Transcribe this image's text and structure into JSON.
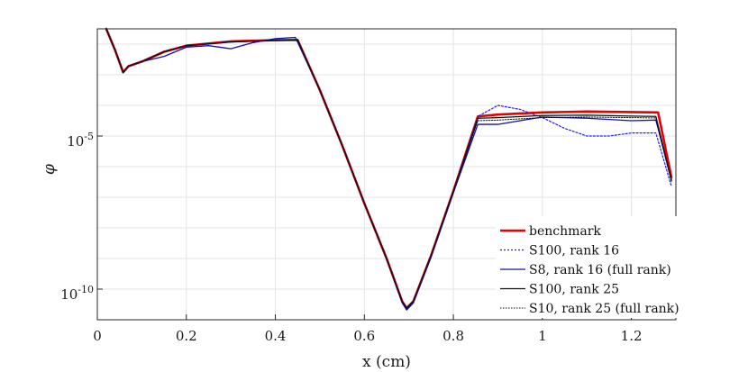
{
  "chart_data": {
    "type": "line",
    "title": "",
    "xlabel": "x (cm)",
    "ylabel": "φ",
    "xlim": [
      0,
      1.3
    ],
    "y_scale": "log",
    "ylim_log10": [
      -11,
      -1.5
    ],
    "grid": true,
    "legend_position": "bottom-right",
    "x_ticks": [
      0,
      0.2,
      0.4,
      0.6,
      0.8,
      1,
      1.2
    ],
    "x_tick_labels": [
      "0",
      "0.2",
      "0.4",
      "0.6",
      "0.8",
      "1",
      "1.2"
    ],
    "y_ticks_log10": [
      -5,
      -10
    ],
    "y_tick_labels": [
      {
        "base": "10",
        "exp": "-5"
      },
      {
        "base": "10",
        "exp": "-10"
      }
    ],
    "series": [
      {
        "name": "benchmark",
        "color": "#e60000",
        "width": 2.6,
        "dash": "",
        "points": [
          [
            0.02,
            -1.5
          ],
          [
            0.04,
            -2.2
          ],
          [
            0.058,
            -2.92
          ],
          [
            0.07,
            -2.72
          ],
          [
            0.1,
            -2.57
          ],
          [
            0.15,
            -2.25
          ],
          [
            0.2,
            -2.05
          ],
          [
            0.3,
            -1.91
          ],
          [
            0.4,
            -1.87
          ],
          [
            0.45,
            -1.86
          ],
          [
            0.5,
            -3.5
          ],
          [
            0.55,
            -5.3
          ],
          [
            0.6,
            -7.2
          ],
          [
            0.65,
            -9.0
          ],
          [
            0.685,
            -10.4
          ],
          [
            0.695,
            -10.62
          ],
          [
            0.71,
            -10.4
          ],
          [
            0.75,
            -8.9
          ],
          [
            0.8,
            -6.8
          ],
          [
            0.855,
            -4.36
          ],
          [
            0.9,
            -4.3
          ],
          [
            1.0,
            -4.23
          ],
          [
            1.1,
            -4.2
          ],
          [
            1.2,
            -4.22
          ],
          [
            1.26,
            -4.23
          ],
          [
            1.29,
            -6.35
          ]
        ]
      },
      {
        "name": "S100, rank 16",
        "color": "#2020ee",
        "width": 1.2,
        "dash": "2,2",
        "points": [
          [
            0.02,
            -1.5
          ],
          [
            0.04,
            -2.2
          ],
          [
            0.058,
            -2.92
          ],
          [
            0.07,
            -2.72
          ],
          [
            0.1,
            -2.57
          ],
          [
            0.15,
            -2.25
          ],
          [
            0.2,
            -2.05
          ],
          [
            0.3,
            -1.91
          ],
          [
            0.4,
            -1.87
          ],
          [
            0.45,
            -1.86
          ],
          [
            0.5,
            -3.5
          ],
          [
            0.55,
            -5.3
          ],
          [
            0.6,
            -7.2
          ],
          [
            0.65,
            -9.0
          ],
          [
            0.685,
            -10.4
          ],
          [
            0.695,
            -10.62
          ],
          [
            0.71,
            -10.4
          ],
          [
            0.75,
            -8.9
          ],
          [
            0.8,
            -6.8
          ],
          [
            0.855,
            -4.36
          ],
          [
            0.9,
            -4.0
          ],
          [
            0.95,
            -4.13
          ],
          [
            1.0,
            -4.4
          ],
          [
            1.05,
            -4.75
          ],
          [
            1.1,
            -5.0
          ],
          [
            1.15,
            -5.0
          ],
          [
            1.2,
            -4.9
          ],
          [
            1.255,
            -4.9
          ],
          [
            1.29,
            -6.65
          ]
        ]
      },
      {
        "name": "S8, rank 16 (full rank)",
        "color": "#1010aa",
        "width": 1.3,
        "dash": "",
        "points": [
          [
            0.02,
            -1.5
          ],
          [
            0.04,
            -2.2
          ],
          [
            0.058,
            -2.92
          ],
          [
            0.07,
            -2.72
          ],
          [
            0.1,
            -2.57
          ],
          [
            0.15,
            -2.4
          ],
          [
            0.2,
            -2.1
          ],
          [
            0.25,
            -2.05
          ],
          [
            0.3,
            -2.15
          ],
          [
            0.35,
            -1.95
          ],
          [
            0.4,
            -1.82
          ],
          [
            0.445,
            -1.78
          ],
          [
            0.5,
            -3.5
          ],
          [
            0.55,
            -5.3
          ],
          [
            0.6,
            -7.2
          ],
          [
            0.65,
            -9.0
          ],
          [
            0.685,
            -10.45
          ],
          [
            0.695,
            -10.68
          ],
          [
            0.71,
            -10.45
          ],
          [
            0.75,
            -8.95
          ],
          [
            0.8,
            -6.85
          ],
          [
            0.855,
            -4.62
          ],
          [
            0.9,
            -4.62
          ],
          [
            1.0,
            -4.38
          ],
          [
            1.1,
            -4.42
          ],
          [
            1.2,
            -4.5
          ],
          [
            1.255,
            -4.48
          ],
          [
            1.29,
            -6.45
          ]
        ]
      },
      {
        "name": "S100, rank 25",
        "color": "#111111",
        "width": 1.3,
        "dash": "",
        "points": [
          [
            0.02,
            -1.5
          ],
          [
            0.04,
            -2.2
          ],
          [
            0.058,
            -2.92
          ],
          [
            0.07,
            -2.72
          ],
          [
            0.1,
            -2.57
          ],
          [
            0.15,
            -2.25
          ],
          [
            0.2,
            -2.05
          ],
          [
            0.3,
            -1.93
          ],
          [
            0.4,
            -1.88
          ],
          [
            0.45,
            -1.87
          ],
          [
            0.5,
            -3.5
          ],
          [
            0.55,
            -5.3
          ],
          [
            0.6,
            -7.2
          ],
          [
            0.65,
            -9.0
          ],
          [
            0.685,
            -10.4
          ],
          [
            0.695,
            -10.62
          ],
          [
            0.71,
            -10.4
          ],
          [
            0.75,
            -8.9
          ],
          [
            0.8,
            -6.8
          ],
          [
            0.855,
            -4.42
          ],
          [
            0.9,
            -4.4
          ],
          [
            1.0,
            -4.33
          ],
          [
            1.1,
            -4.32
          ],
          [
            1.2,
            -4.35
          ],
          [
            1.255,
            -4.36
          ],
          [
            1.29,
            -6.45
          ]
        ]
      },
      {
        "name": "S10, rank 25 (full rank)",
        "color": "#111111",
        "width": 1.0,
        "dash": "1.5,1.5",
        "points": [
          [
            0.02,
            -1.5
          ],
          [
            0.04,
            -2.2
          ],
          [
            0.058,
            -2.92
          ],
          [
            0.07,
            -2.72
          ],
          [
            0.1,
            -2.57
          ],
          [
            0.15,
            -2.25
          ],
          [
            0.2,
            -2.05
          ],
          [
            0.3,
            -1.93
          ],
          [
            0.4,
            -1.88
          ],
          [
            0.45,
            -1.87
          ],
          [
            0.5,
            -3.5
          ],
          [
            0.55,
            -5.3
          ],
          [
            0.6,
            -7.2
          ],
          [
            0.65,
            -9.0
          ],
          [
            0.685,
            -10.4
          ],
          [
            0.695,
            -10.62
          ],
          [
            0.71,
            -10.4
          ],
          [
            0.75,
            -8.9
          ],
          [
            0.8,
            -6.8
          ],
          [
            0.855,
            -4.5
          ],
          [
            0.9,
            -4.48
          ],
          [
            1.0,
            -4.4
          ],
          [
            1.1,
            -4.38
          ],
          [
            1.2,
            -4.4
          ],
          [
            1.255,
            -4.41
          ],
          [
            1.29,
            -6.5
          ]
        ]
      }
    ]
  }
}
